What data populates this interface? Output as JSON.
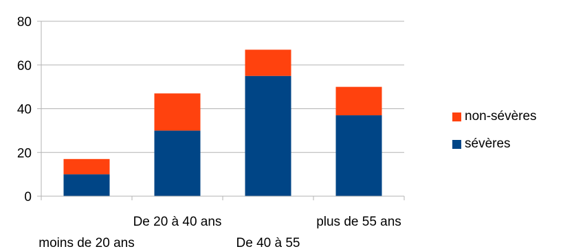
{
  "chart_data": {
    "type": "bar",
    "stacked": true,
    "categories": [
      "moins de 20 ans",
      "De 20 à 40 ans",
      "De 40 à 55",
      "plus de 55 ans"
    ],
    "series": [
      {
        "name": "sévères",
        "values": [
          10,
          30,
          55,
          37
        ],
        "color": "#004586"
      },
      {
        "name": "non-sévères",
        "values": [
          7,
          17,
          12,
          13
        ],
        "color": "#ff420e"
      }
    ],
    "ylim": [
      0,
      80
    ],
    "yticks": [
      0,
      20,
      40,
      60,
      80
    ],
    "grid": true,
    "legend_position": "right",
    "legend_order": [
      "non-sévères",
      "sévères"
    ],
    "title": "",
    "xlabel": "",
    "ylabel": ""
  }
}
